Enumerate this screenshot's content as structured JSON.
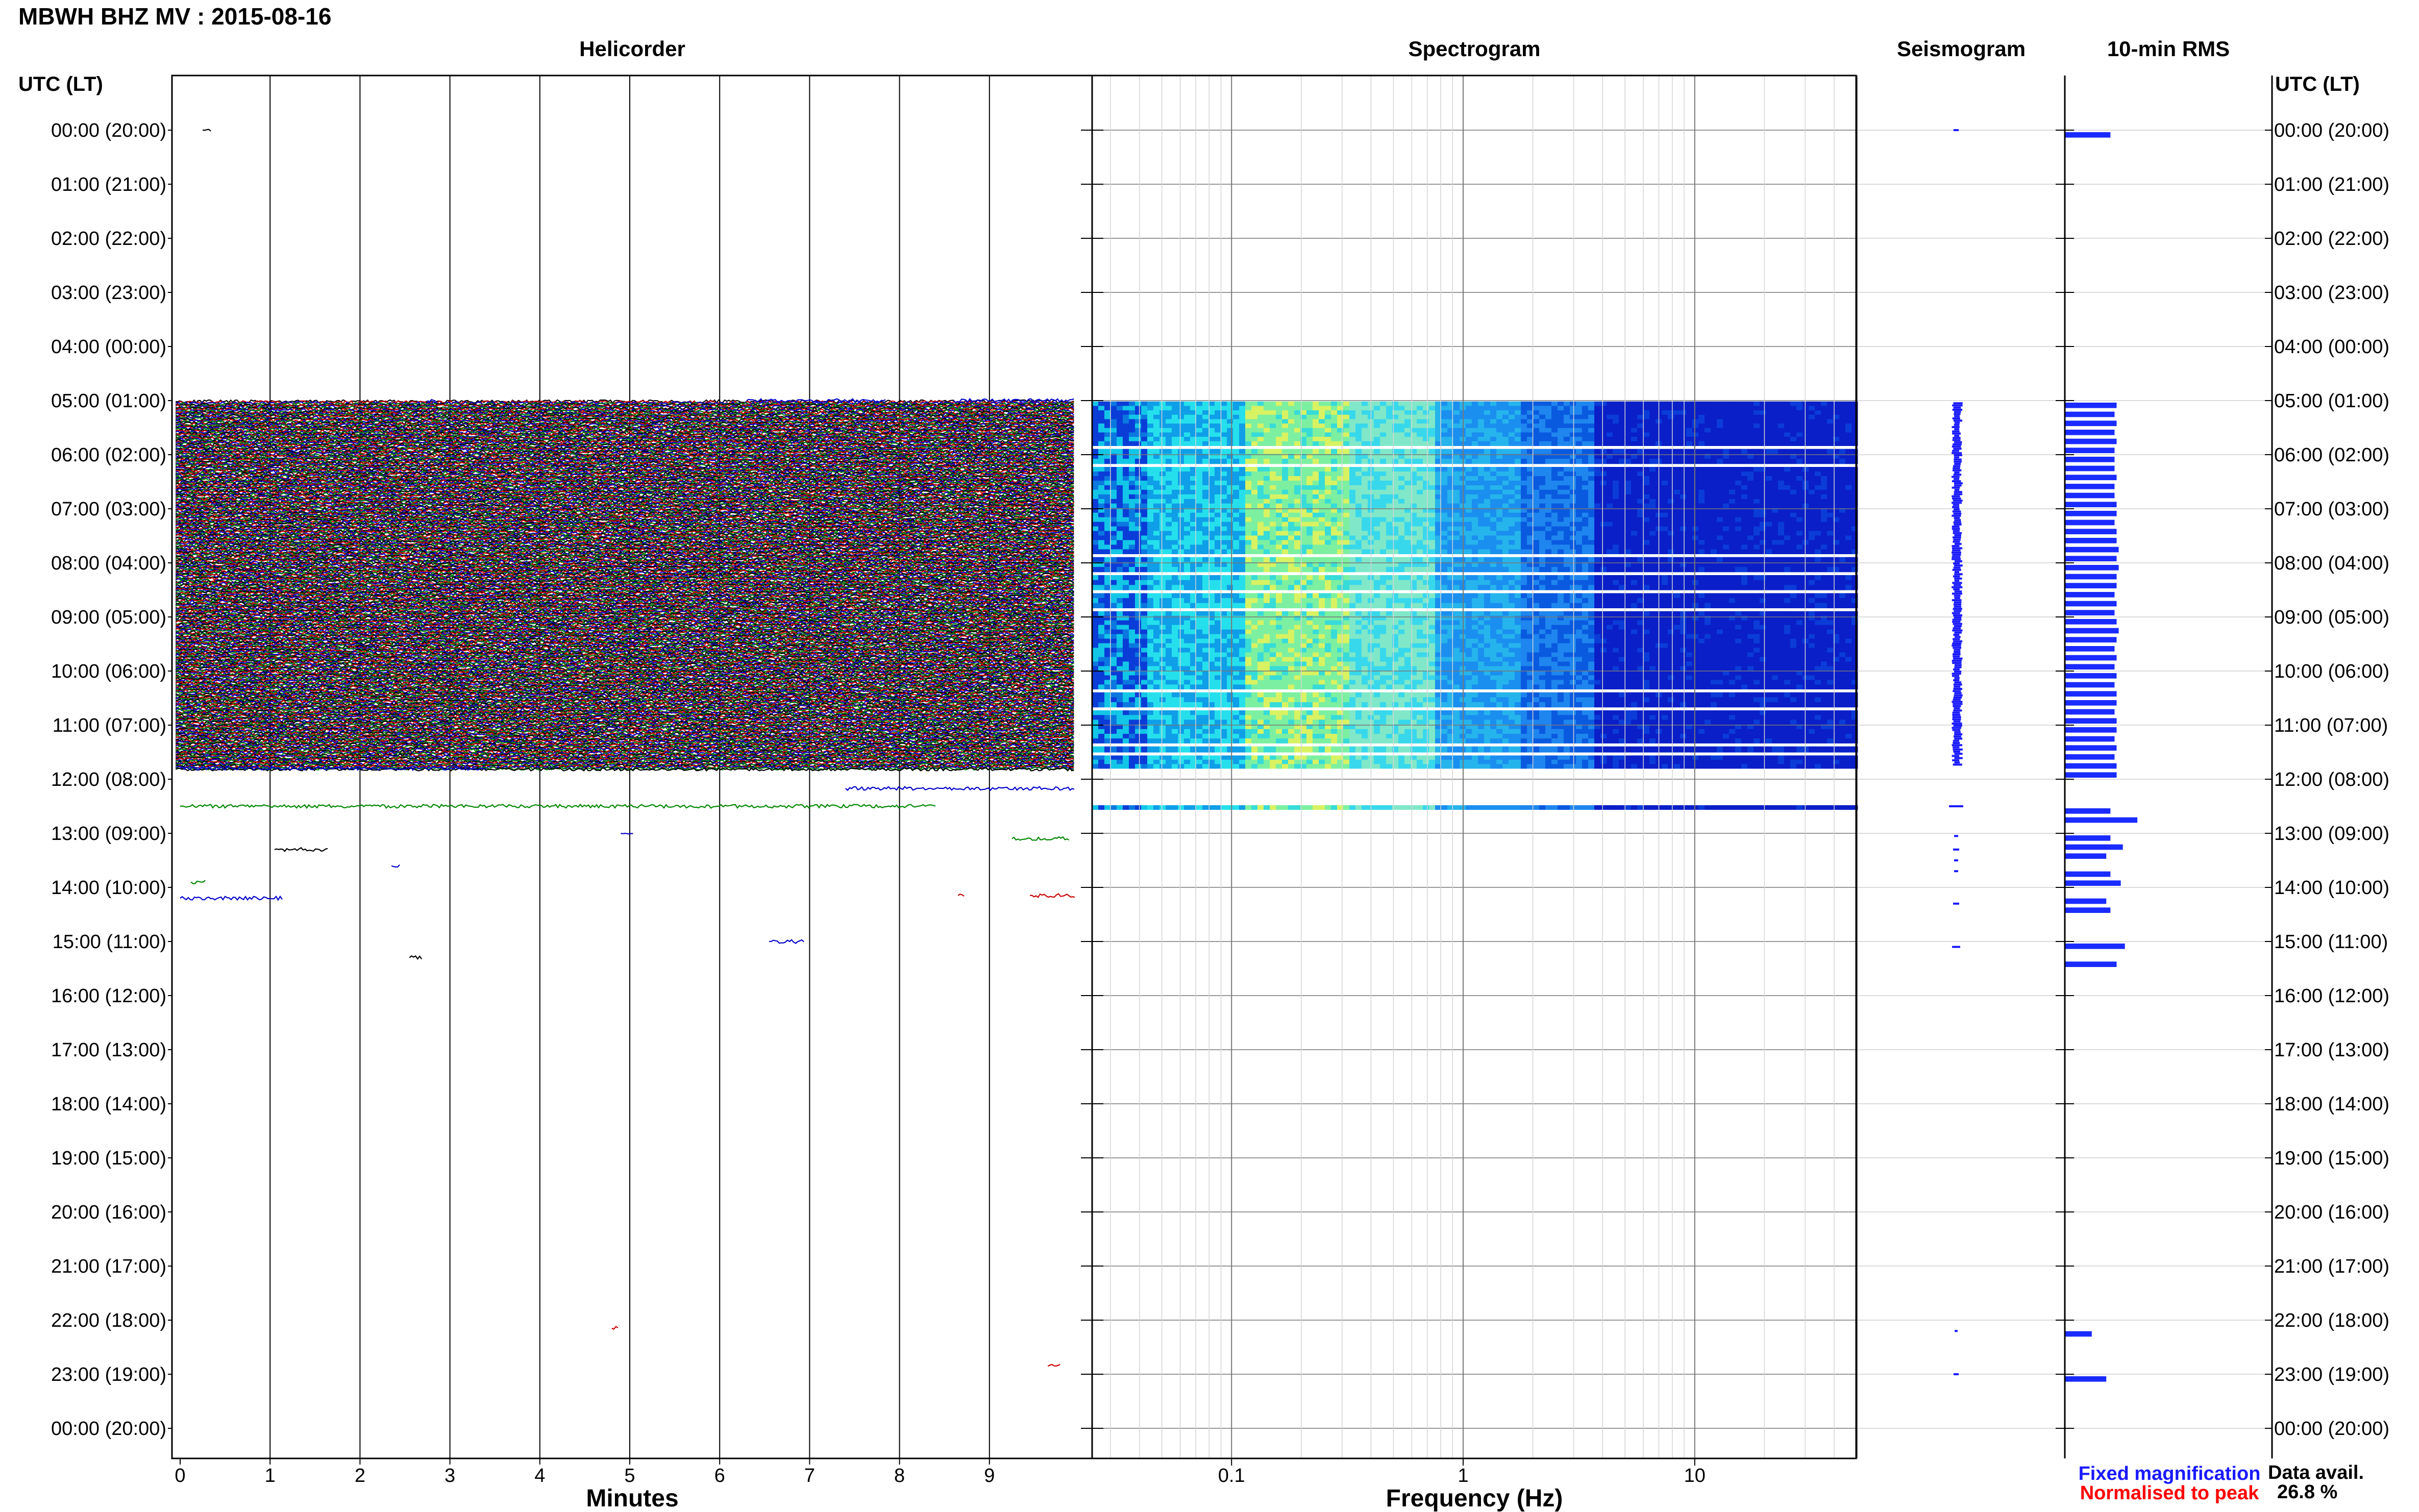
{
  "title": "MBWH BHZ MV : 2015-08-16",
  "panels": {
    "helicorder": "Helicorder",
    "spectrogram": "Spectrogram",
    "seismogram": "Seismogram",
    "rms": "10-min RMS"
  },
  "y_axis_header": "UTC (LT)",
  "x_axis": {
    "minutes_label": "Minutes",
    "minutes_ticks": [
      "0",
      "1",
      "2",
      "3",
      "4",
      "5",
      "6",
      "7",
      "8",
      "9"
    ],
    "frequency_label": "Frequency (Hz)",
    "frequency_ticks": [
      "0.1",
      "1",
      "10"
    ]
  },
  "legend": {
    "fixed": "Fixed magnification",
    "normalised": "Normalised to peak",
    "data_avail_label": "Data avail.",
    "data_avail_value": "26.8 %"
  },
  "colors": {
    "trace_cycle": [
      "#000000",
      "#cc0000",
      "#0000cc",
      "#008800"
    ],
    "rms_bar": "#1a2bff",
    "fixed_text": "#1a1aff",
    "normalised_text": "#ff0000",
    "grid": "#999999"
  },
  "chart_data": {
    "type": "heatmap",
    "hour_labels": [
      "00:00 (20:00)",
      "01:00 (21:00)",
      "02:00 (22:00)",
      "03:00 (23:00)",
      "04:00 (00:00)",
      "05:00 (01:00)",
      "06:00 (02:00)",
      "07:00 (03:00)",
      "08:00 (04:00)",
      "09:00 (05:00)",
      "10:00 (06:00)",
      "11:00 (07:00)",
      "12:00 (08:00)",
      "13:00 (09:00)",
      "14:00 (10:00)",
      "15:00 (11:00)",
      "16:00 (12:00)",
      "17:00 (13:00)",
      "18:00 (14:00)",
      "19:00 (15:00)",
      "20:00 (16:00)",
      "21:00 (17:00)",
      "22:00 (18:00)",
      "23:00 (19:00)",
      "00:00 (20:00)"
    ],
    "minutes_range": [
      0,
      10
    ],
    "frequency_range_hz": [
      0.025,
      50
    ],
    "frequency_scale": "log",
    "continuous_data_window_utc": [
      "05:00",
      "12:00"
    ],
    "spectrogram_gaps_utc": [
      "05:50",
      "06:10",
      "07:50",
      "08:10",
      "08:30",
      "08:50",
      "10:20",
      "10:40",
      "11:20",
      "11:30"
    ],
    "rms_10min": [
      {
        "t": "00:00",
        "v": 0.22
      },
      {
        "t": "05:00",
        "v": 0.25
      },
      {
        "t": "05:10",
        "v": 0.24
      },
      {
        "t": "05:20",
        "v": 0.25
      },
      {
        "t": "05:30",
        "v": 0.24
      },
      {
        "t": "05:40",
        "v": 0.25
      },
      {
        "t": "05:50",
        "v": 0.24
      },
      {
        "t": "06:00",
        "v": 0.24
      },
      {
        "t": "06:10",
        "v": 0.24
      },
      {
        "t": "06:20",
        "v": 0.25
      },
      {
        "t": "06:30",
        "v": 0.24
      },
      {
        "t": "06:40",
        "v": 0.24
      },
      {
        "t": "06:50",
        "v": 0.25
      },
      {
        "t": "07:00",
        "v": 0.25
      },
      {
        "t": "07:10",
        "v": 0.24
      },
      {
        "t": "07:20",
        "v": 0.25
      },
      {
        "t": "07:30",
        "v": 0.25
      },
      {
        "t": "07:40",
        "v": 0.26
      },
      {
        "t": "07:50",
        "v": 0.25
      },
      {
        "t": "08:00",
        "v": 0.26
      },
      {
        "t": "08:10",
        "v": 0.25
      },
      {
        "t": "08:20",
        "v": 0.25
      },
      {
        "t": "08:30",
        "v": 0.24
      },
      {
        "t": "08:40",
        "v": 0.25
      },
      {
        "t": "08:50",
        "v": 0.24
      },
      {
        "t": "09:00",
        "v": 0.25
      },
      {
        "t": "09:10",
        "v": 0.26
      },
      {
        "t": "09:20",
        "v": 0.25
      },
      {
        "t": "09:30",
        "v": 0.24
      },
      {
        "t": "09:40",
        "v": 0.25
      },
      {
        "t": "09:50",
        "v": 0.24
      },
      {
        "t": "10:00",
        "v": 0.25
      },
      {
        "t": "10:10",
        "v": 0.24
      },
      {
        "t": "10:20",
        "v": 0.25
      },
      {
        "t": "10:30",
        "v": 0.25
      },
      {
        "t": "10:40",
        "v": 0.24
      },
      {
        "t": "10:50",
        "v": 0.25
      },
      {
        "t": "11:00",
        "v": 0.25
      },
      {
        "t": "11:10",
        "v": 0.24
      },
      {
        "t": "11:20",
        "v": 0.25
      },
      {
        "t": "11:30",
        "v": 0.24
      },
      {
        "t": "11:40",
        "v": 0.25
      },
      {
        "t": "11:50",
        "v": 0.25
      },
      {
        "t": "12:30",
        "v": 0.22
      },
      {
        "t": "12:40",
        "v": 0.35
      },
      {
        "t": "13:00",
        "v": 0.22
      },
      {
        "t": "13:10",
        "v": 0.28
      },
      {
        "t": "13:20",
        "v": 0.2
      },
      {
        "t": "13:40",
        "v": 0.22
      },
      {
        "t": "13:50",
        "v": 0.27
      },
      {
        "t": "14:10",
        "v": 0.2
      },
      {
        "t": "14:20",
        "v": 0.22
      },
      {
        "t": "15:00",
        "v": 0.29
      },
      {
        "t": "15:20",
        "v": 0.25
      },
      {
        "t": "22:10",
        "v": 0.13
      },
      {
        "t": "23:00",
        "v": 0.2
      }
    ]
  }
}
